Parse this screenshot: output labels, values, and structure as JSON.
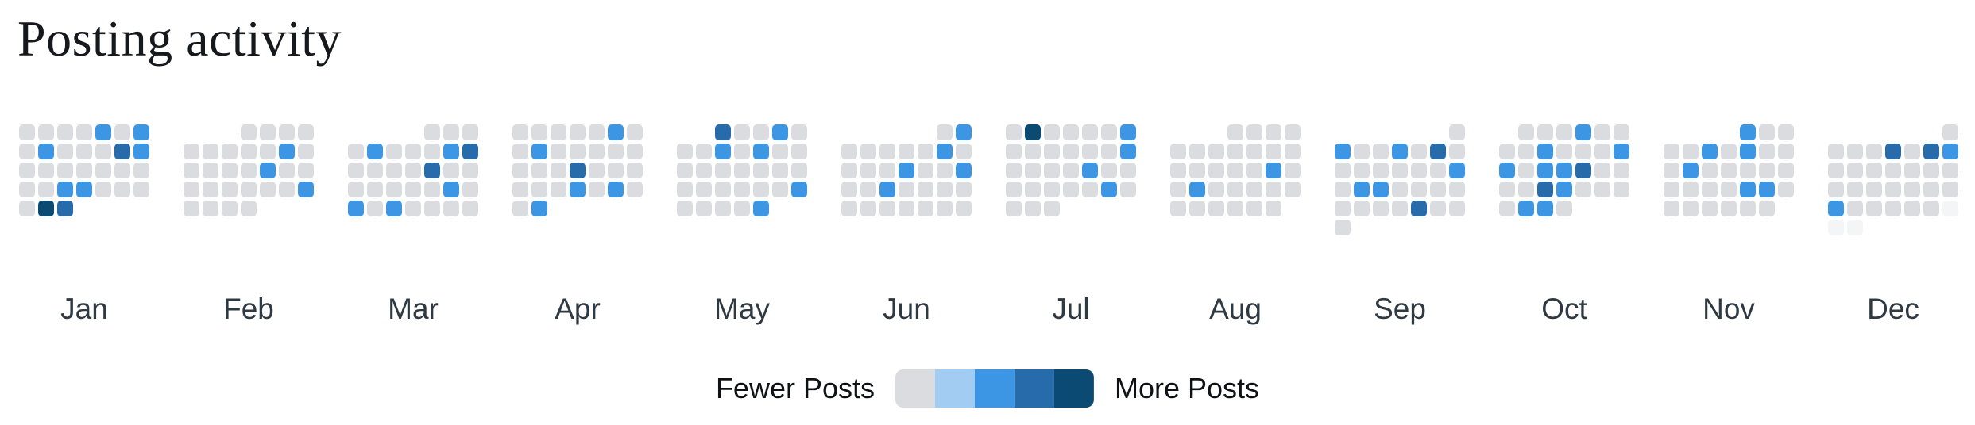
{
  "chart_data": {
    "type": "heatmap",
    "subtype": "calendar-posting-activity",
    "title": "Posting activity",
    "layout": {
      "columns_per_week": 7,
      "months_in_row": 12,
      "grid_on": false,
      "legend_position": "bottom-center"
    },
    "scale": [
      "#dadce0",
      "#a2ccf1",
      "#3d96e3",
      "#276bab",
      "#0b4a73"
    ],
    "future_color": "#f4f5f6",
    "legend": {
      "min_label": "Fewer Posts",
      "max_label": "More Posts"
    },
    "months": [
      {
        "label": "Jan",
        "offset": 0,
        "days": 31,
        "levels": {
          "5": 2,
          "7": 2,
          "9": 2,
          "13": 3,
          "14": 2,
          "24": 2,
          "25": 2,
          "30": 4,
          "31": 3
        },
        "future_days": []
      },
      {
        "label": "Feb",
        "offset": 3,
        "days": 29,
        "levels": {
          "10": 2,
          "16": 2,
          "25": 2
        },
        "future_days": []
      },
      {
        "label": "Mar",
        "offset": 4,
        "days": 31,
        "levels": {
          "5": 2,
          "9": 2,
          "10": 3,
          "15": 3,
          "23": 2,
          "25": 2,
          "27": 2
        },
        "future_days": []
      },
      {
        "label": "Apr",
        "offset": 0,
        "days": 30,
        "levels": {
          "6": 2,
          "9": 2,
          "18": 3,
          "25": 2,
          "27": 2,
          "30": 2
        },
        "future_days": []
      },
      {
        "label": "May",
        "offset": 2,
        "days": 31,
        "levels": {
          "1": 3,
          "4": 2,
          "8": 2,
          "10": 2,
          "26": 2,
          "31": 2
        },
        "future_days": []
      },
      {
        "label": "Jun",
        "offset": 5,
        "days": 30,
        "levels": {
          "2": 2,
          "8": 2,
          "13": 2,
          "16": 2,
          "19": 2
        },
        "future_days": []
      },
      {
        "label": "Jul",
        "offset": 0,
        "days": 31,
        "levels": {
          "2": 4,
          "7": 2,
          "14": 2,
          "19": 2,
          "27": 2
        },
        "future_days": []
      },
      {
        "label": "Aug",
        "offset": 3,
        "days": 31,
        "levels": {
          "17": 2,
          "20": 2
        },
        "future_days": []
      },
      {
        "label": "Sep",
        "offset": 6,
        "days": 30,
        "levels": {
          "2": 2,
          "5": 2,
          "7": 3,
          "15": 2,
          "17": 2,
          "18": 2,
          "27": 3
        },
        "future_days": []
      },
      {
        "label": "Oct",
        "offset": 1,
        "days": 31,
        "levels": {
          "4": 2,
          "9": 2,
          "13": 2,
          "14": 2,
          "16": 2,
          "17": 2,
          "18": 3,
          "23": 3,
          "24": 2,
          "29": 2,
          "30": 2
        },
        "future_days": []
      },
      {
        "label": "Nov",
        "offset": 4,
        "days": 30,
        "levels": {
          "1": 2,
          "6": 2,
          "8": 2,
          "12": 2,
          "22": 2,
          "23": 2
        },
        "future_days": []
      },
      {
        "label": "Dec",
        "offset": 6,
        "days": 31,
        "levels": {
          "5": 3,
          "7": 3,
          "8": 2,
          "23": 2
        },
        "future_days": [
          29,
          30,
          31
        ]
      }
    ]
  }
}
